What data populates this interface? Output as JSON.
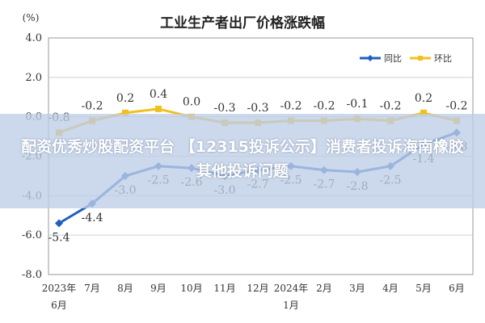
{
  "chart_data": {
    "type": "line",
    "title": "工业生产者出厂价格涨跌幅",
    "ylabel": "(%)",
    "ylim": [
      -8.0,
      4.0
    ],
    "yticks": [
      "4.0",
      "2.0",
      "0.0",
      "-2.0",
      "-4.0",
      "-6.0",
      "-8.0"
    ],
    "categories": [
      "2023年6月",
      "7月",
      "8月",
      "9月",
      "10月",
      "11月",
      "12月",
      "2024年1月",
      "2月",
      "3月",
      "4月",
      "5月",
      "6月"
    ],
    "grid": true,
    "legend_position": "top-right",
    "series": [
      {
        "name": "同比",
        "color": "#1f5fbf",
        "values": [
          -5.4,
          -4.4,
          -3.0,
          -2.5,
          -2.6,
          -3.0,
          -2.7,
          -2.5,
          -2.7,
          -2.8,
          -2.5,
          -1.4,
          -0.8
        ],
        "labels": [
          "-5.4",
          "-4.4",
          "-3.0",
          "-2.5",
          "-2.6",
          "-3.0",
          "-2.7",
          "-2.5",
          "-2.7",
          "-2.8",
          "-2.5",
          "-1.4",
          "-0.8"
        ]
      },
      {
        "name": "环比",
        "color": "#f0c020",
        "values": [
          -0.8,
          -0.2,
          0.2,
          0.4,
          0.0,
          -0.3,
          -0.3,
          -0.2,
          -0.2,
          -0.1,
          -0.2,
          0.2,
          -0.2
        ],
        "labels": [
          "-0.8",
          "-0.2",
          "0.2",
          "0.4",
          "0.0",
          "-0.3",
          "-0.3",
          "-0.2",
          "-0.2",
          "-0.1",
          "-0.2",
          "0.2",
          "-0.2"
        ]
      }
    ]
  },
  "overlay": {
    "text": "配资优秀炒股配资平台 【12315投诉公示】消费者投诉海南橡胶其他投诉问题"
  }
}
